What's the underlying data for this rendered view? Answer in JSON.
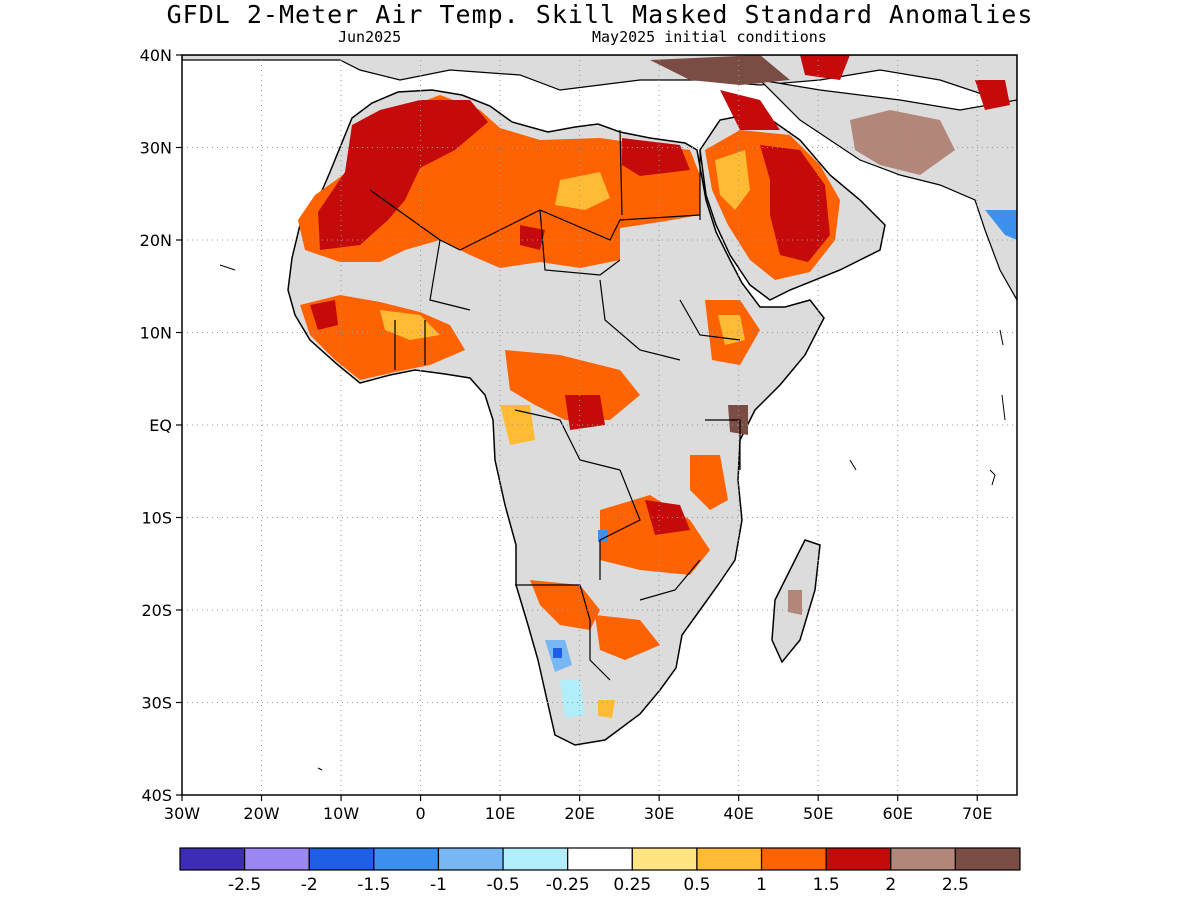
{
  "title": "GFDL 2-Meter Air Temp. Skill Masked Standard Anomalies",
  "subtitle_left": "Jun2025",
  "subtitle_right": "May2025 initial conditions",
  "map": {
    "lon_range": [
      -30,
      75
    ],
    "lat_range": [
      -40,
      40
    ],
    "grid": "dotted",
    "lat_ticks": [
      {
        "value": 40,
        "label": "40N"
      },
      {
        "value": 30,
        "label": "30N"
      },
      {
        "value": 20,
        "label": "20N"
      },
      {
        "value": 10,
        "label": "10N"
      },
      {
        "value": 0,
        "label": "EQ"
      },
      {
        "value": -10,
        "label": "10S"
      },
      {
        "value": -20,
        "label": "20S"
      },
      {
        "value": -30,
        "label": "30S"
      },
      {
        "value": -40,
        "label": "40S"
      }
    ],
    "lon_ticks": [
      {
        "value": -30,
        "label": "30W"
      },
      {
        "value": -20,
        "label": "20W"
      },
      {
        "value": -10,
        "label": "10W"
      },
      {
        "value": 0,
        "label": "0"
      },
      {
        "value": 10,
        "label": "10E"
      },
      {
        "value": 20,
        "label": "20E"
      },
      {
        "value": 30,
        "label": "30E"
      },
      {
        "value": 40,
        "label": "40E"
      },
      {
        "value": 50,
        "label": "50E"
      },
      {
        "value": 60,
        "label": "60E"
      },
      {
        "value": 70,
        "label": "70E"
      }
    ],
    "colors": {
      "land_masked": "#dcdcdc",
      "coastline": "#000000"
    }
  },
  "colorbar": {
    "colors": [
      "#3c2db4",
      "#9b86f2",
      "#1f5ee6",
      "#3c90ee",
      "#77b7f4",
      "#b2eefa",
      "#ffffff",
      "#ffe484",
      "#ffbb33",
      "#ff6200",
      "#c40a0a",
      "#b3867a",
      "#7a4c43"
    ],
    "labels": [
      "-2.5",
      "-2",
      "-1.5",
      "-1",
      "-0.5",
      "-0.25",
      "0.25",
      "0.5",
      "1",
      "1.5",
      "2",
      "2.5"
    ]
  }
}
